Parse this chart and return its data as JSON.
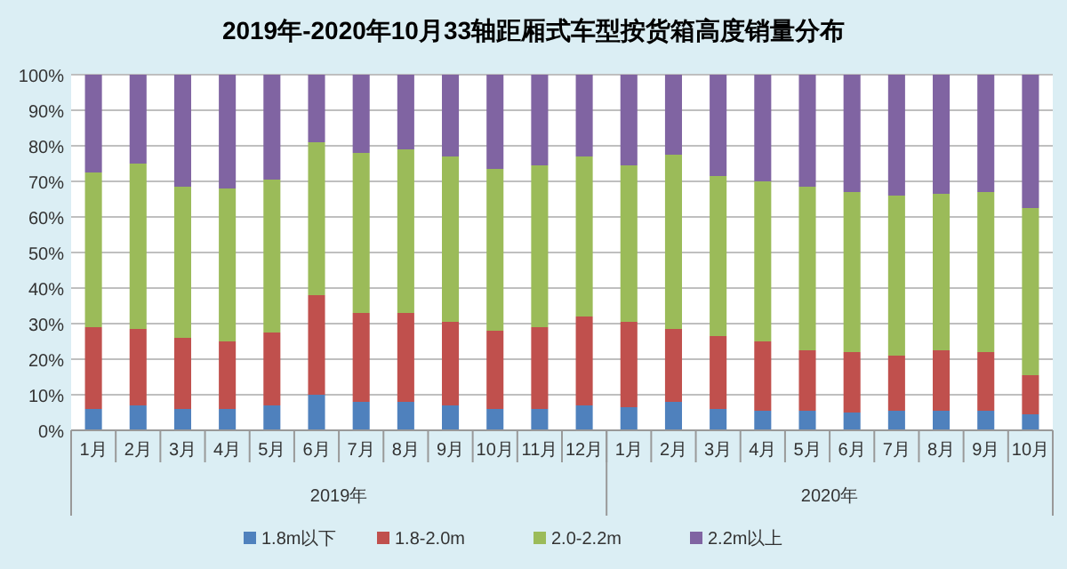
{
  "chart_data": {
    "type": "bar",
    "stacked": true,
    "title": "2019年-2020年10月33轴距厢式车型按货箱高度销量分布",
    "categories": [
      "1月",
      "2月",
      "3月",
      "4月",
      "5月",
      "6月",
      "7月",
      "8月",
      "9月",
      "10月",
      "11月",
      "12月",
      "1月",
      "2月",
      "3月",
      "4月",
      "5月",
      "6月",
      "7月",
      "8月",
      "9月",
      "10月"
    ],
    "series": [
      {
        "name": "1.8m以下",
        "color": "#4f81bd",
        "values": [
          6,
          7,
          6,
          6,
          7,
          10,
          8,
          8,
          7,
          6,
          6,
          7,
          6.5,
          8,
          6,
          5.5,
          5.5,
          5,
          5.5,
          5.5,
          5.5,
          4.5
        ]
      },
      {
        "name": "1.8-2.0m",
        "color": "#c0504d",
        "values": [
          23,
          21.5,
          20,
          19,
          20.5,
          28,
          25,
          25,
          23.5,
          22,
          23,
          25,
          24,
          20.5,
          20.5,
          19.5,
          17,
          17,
          15.5,
          17,
          16.5,
          11
        ]
      },
      {
        "name": "2.0-2.2m",
        "color": "#9bbb59",
        "values": [
          43.5,
          46.5,
          42.5,
          43,
          43,
          43,
          45,
          46,
          46.5,
          45.5,
          45.5,
          45,
          44,
          49,
          45,
          45,
          46,
          45,
          45,
          44,
          45,
          47
        ]
      },
      {
        "name": "2.2m以上",
        "color": "#8064a2",
        "values": [
          27.5,
          25,
          31.5,
          32,
          29.5,
          19,
          22,
          21,
          23,
          26.5,
          25.5,
          23,
          25.5,
          22.5,
          28.5,
          30,
          31.5,
          33,
          34,
          33.5,
          33,
          37.5
        ]
      }
    ],
    "annotations": [
      "2019年",
      "2020年"
    ],
    "ylim": [
      0,
      100
    ],
    "yticks": [
      {
        "value": 0,
        "label": "0%"
      },
      {
        "value": 10,
        "label": "10%"
      },
      {
        "value": 20,
        "label": "20%"
      },
      {
        "value": 30,
        "label": "30%"
      },
      {
        "value": 40,
        "label": "40%"
      },
      {
        "value": 50,
        "label": "50%"
      },
      {
        "value": 60,
        "label": "60%"
      },
      {
        "value": 70,
        "label": "70%"
      },
      {
        "value": 80,
        "label": "80%"
      },
      {
        "value": 90,
        "label": "90%"
      },
      {
        "value": 100,
        "label": "100%"
      }
    ],
    "grid": "y",
    "legend": "bottom"
  }
}
